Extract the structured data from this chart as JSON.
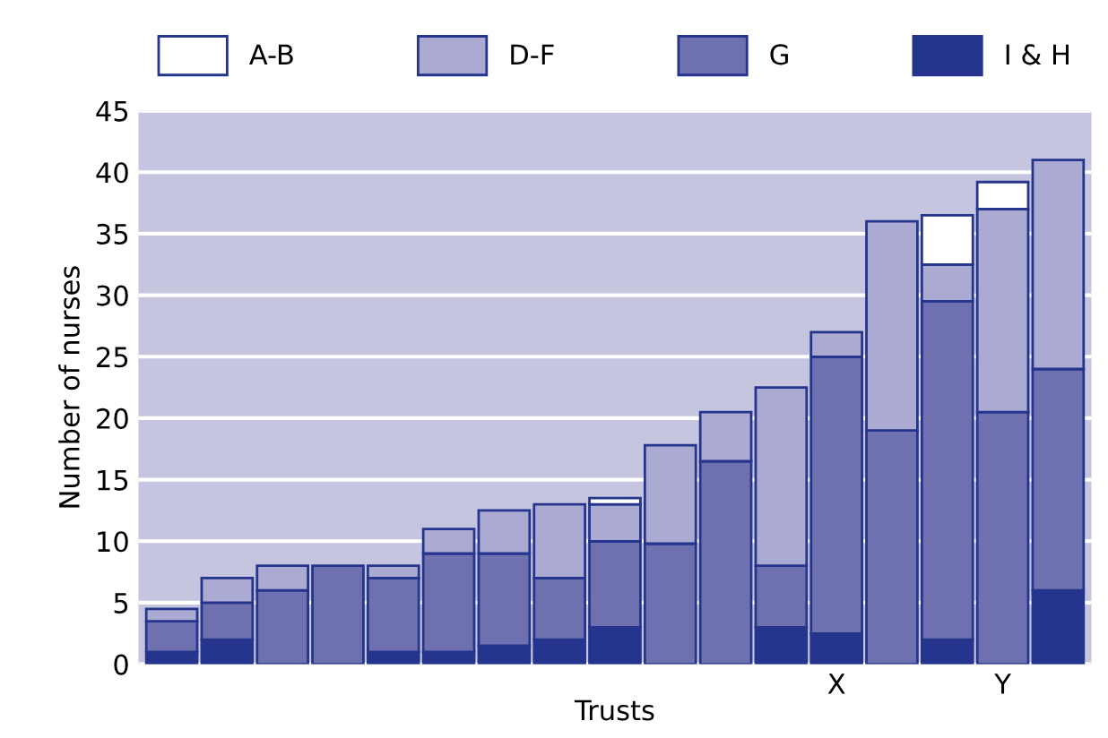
{
  "chart_data": {
    "type": "bar",
    "stacked": true,
    "xlabel": "Trusts",
    "ylabel": "Number of nurses",
    "categories": [
      null,
      null,
      null,
      null,
      null,
      null,
      null,
      null,
      null,
      null,
      null,
      null,
      "X",
      null,
      null,
      "Y",
      null
    ],
    "series": [
      {
        "name": "I & H",
        "color": "#25348c",
        "values": [
          1,
          2,
          0,
          0,
          1,
          1,
          1.5,
          2,
          3,
          0,
          0,
          3,
          2.5,
          0,
          2,
          0,
          6
        ]
      },
      {
        "name": "G",
        "color": "#6e70b0",
        "values": [
          2.5,
          3,
          6,
          8,
          6,
          8,
          7.5,
          5,
          7,
          9.8,
          16.5,
          5,
          22.5,
          19,
          27.5,
          20.5,
          18
        ]
      },
      {
        "name": "D-F",
        "color": "#aaaad2",
        "values": [
          1,
          2,
          2,
          0,
          1,
          2,
          3.5,
          6,
          3,
          8,
          4,
          14.5,
          2,
          17,
          3,
          16.5,
          17
        ]
      },
      {
        "name": "A-B",
        "color": "#ffffff",
        "values": [
          null,
          null,
          null,
          null,
          null,
          null,
          null,
          null,
          0.5,
          null,
          null,
          null,
          null,
          null,
          4,
          2.2,
          null
        ]
      }
    ],
    "ylim": [
      0,
      45
    ],
    "yticks": [
      0,
      5,
      10,
      15,
      20,
      25,
      30,
      35,
      40,
      45
    ],
    "grid": "y",
    "legend": "top"
  }
}
